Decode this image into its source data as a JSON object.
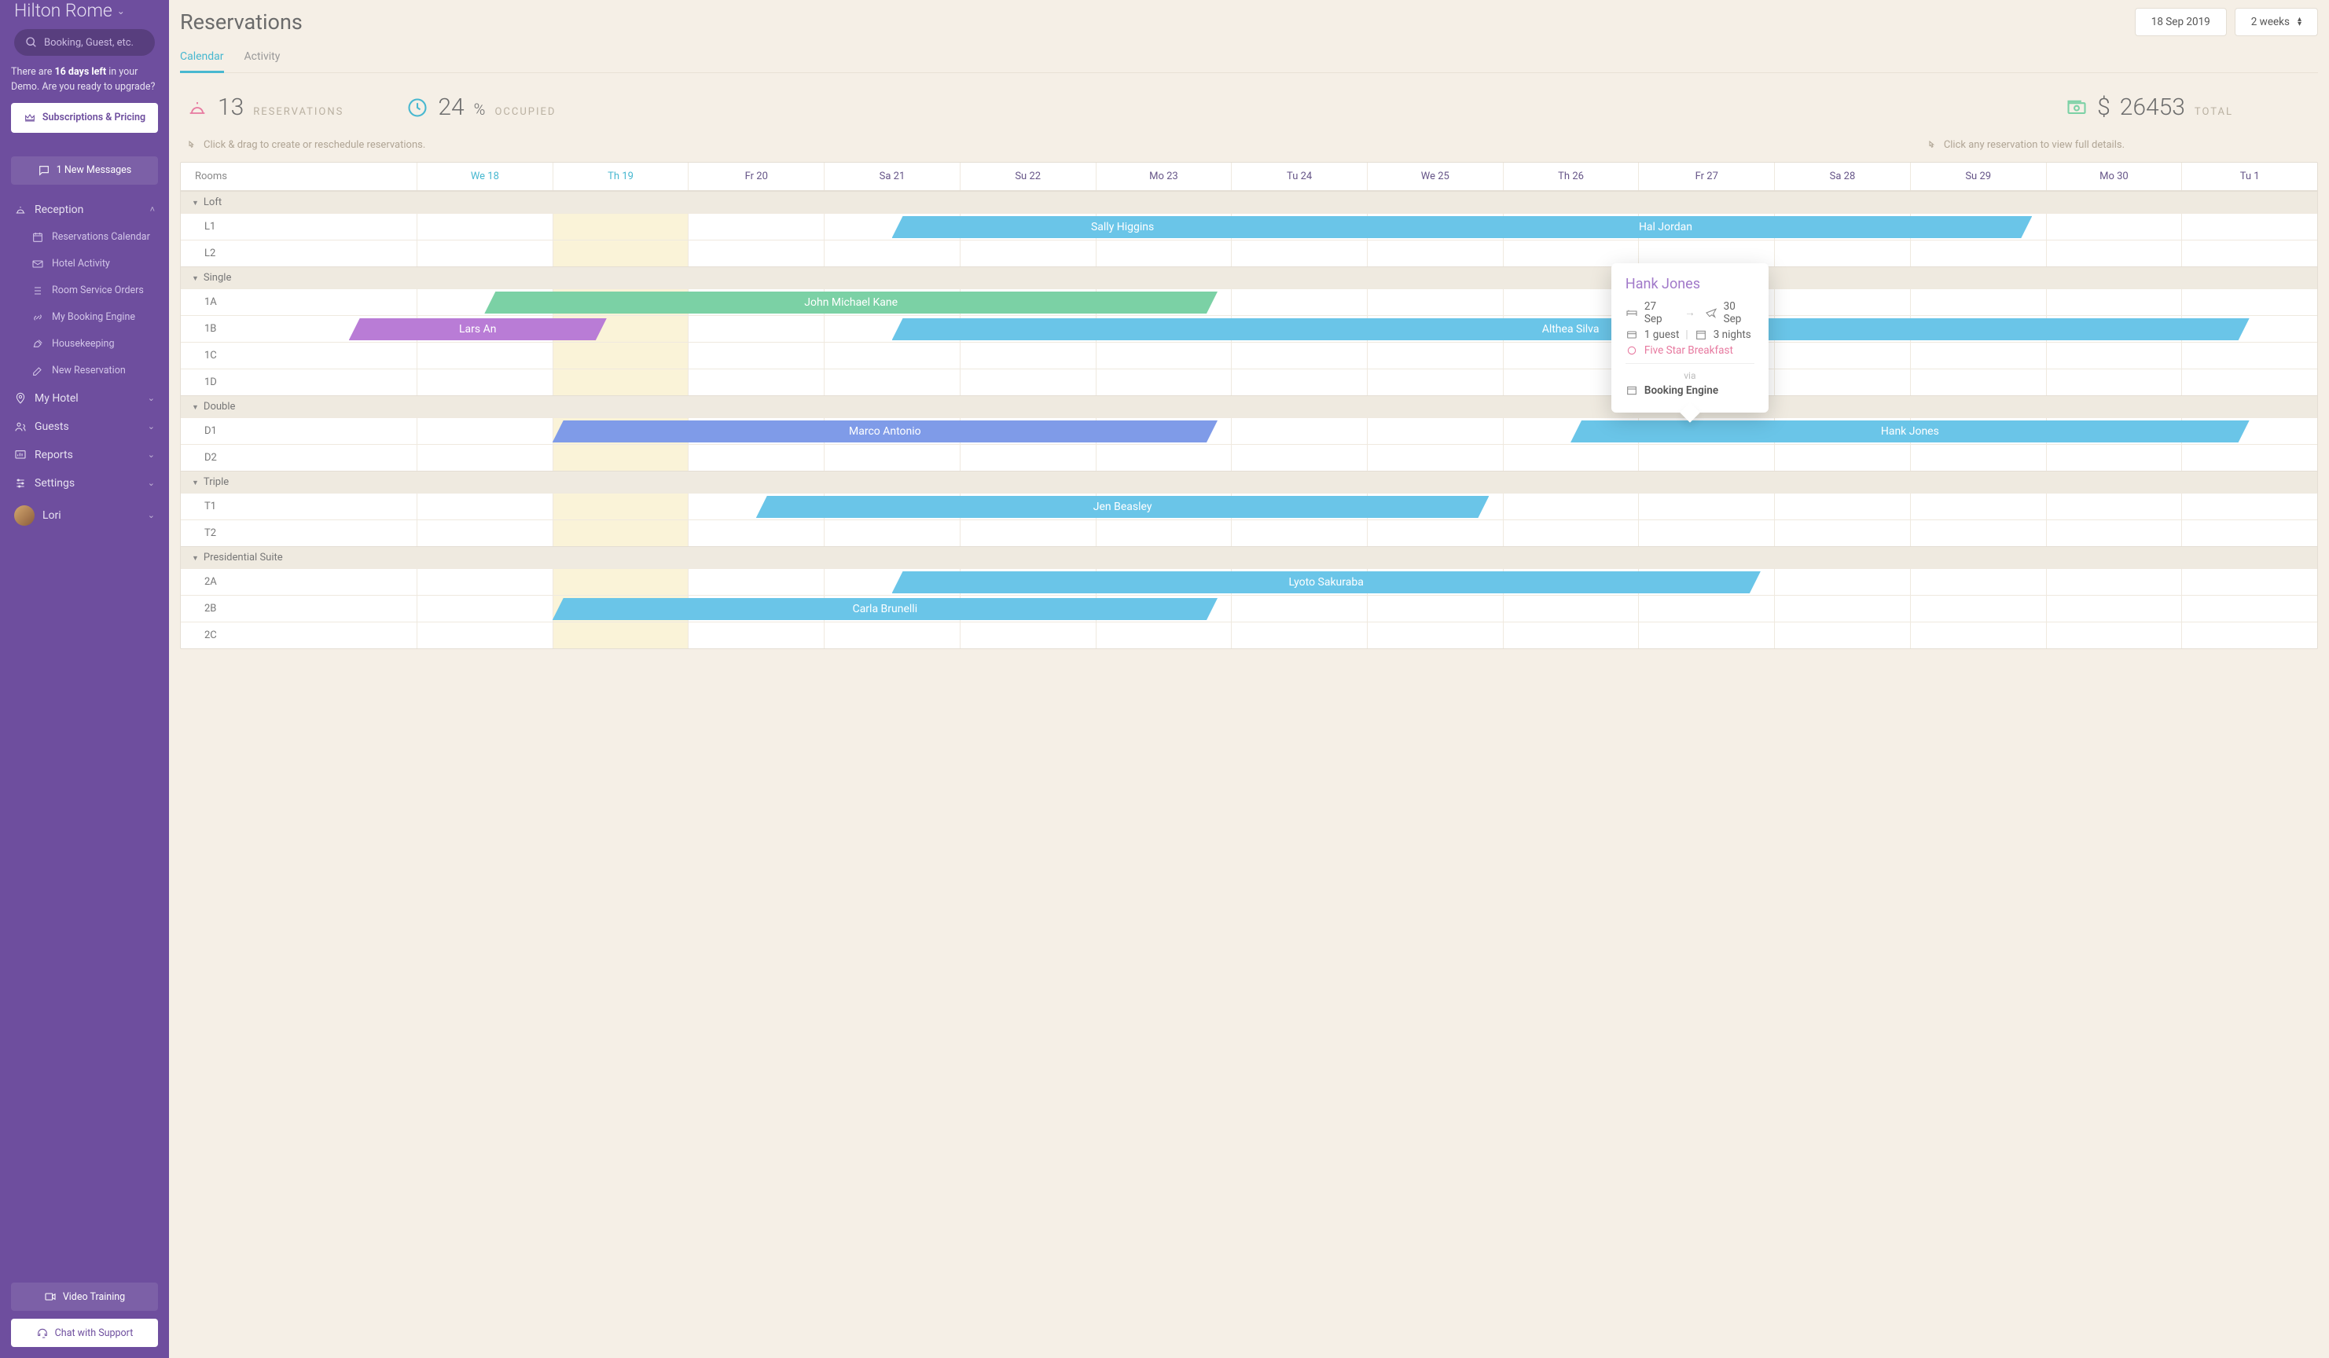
{
  "sidebar": {
    "hotel_name": "Hilton Rome",
    "search_placeholder": "Booking, Guest, etc.",
    "demo_prefix": "There are ",
    "demo_days": "16 days left",
    "demo_suffix": " in your Demo. Are you ready to upgrade?",
    "subscriptions_btn": "Subscriptions & Pricing",
    "messages_btn": "1 New Messages",
    "nav": {
      "reception": "Reception",
      "reception_items": {
        "calendar": "Reservations Calendar",
        "activity": "Hotel Activity",
        "room_service": "Room Service Orders",
        "booking_engine": "My Booking Engine",
        "housekeeping": "Housekeeping",
        "new_reservation": "New Reservation"
      },
      "my_hotel": "My Hotel",
      "guests": "Guests",
      "reports": "Reports",
      "settings": "Settings",
      "user": "Lori"
    },
    "video_training": "Video Training",
    "chat_support": "Chat with Support"
  },
  "header": {
    "title": "Reservations",
    "date": "18 Sep 2019",
    "range": "2 weeks"
  },
  "tabs": {
    "calendar": "Calendar",
    "activity": "Activity"
  },
  "stats": {
    "reservations_num": "13",
    "reservations_lbl": "RESERVATIONS",
    "occupied_num": "24",
    "occupied_pct": "%",
    "occupied_lbl": "OCCUPIED",
    "total_cur": "$",
    "total_num": "26453",
    "total_lbl": "TOTAL"
  },
  "hints": {
    "drag": "Click & drag to create or reschedule reservations.",
    "click": "Click any reservation to view full details."
  },
  "calendar": {
    "rooms_header": "Rooms",
    "days": [
      "We 18",
      "Th 19",
      "Fr 20",
      "Sa 21",
      "Su 22",
      "Mo 23",
      "Tu 24",
      "We 25",
      "Th 26",
      "Fr 27",
      "Sa 28",
      "Su 29",
      "Mo 30",
      "Tu 1"
    ],
    "today_index": 1,
    "groups": [
      {
        "name": "Loft",
        "rooms": [
          {
            "label": "L1",
            "bookings": [
              {
                "name": "Sally Higgins",
                "start": 3.5,
                "span": 3.4,
                "color": "sky"
              },
              {
                "name": "Hal Jordan",
                "start": 6.5,
                "span": 5.4,
                "color": "sky"
              }
            ]
          },
          {
            "label": "L2",
            "bookings": []
          }
        ]
      },
      {
        "name": "Single",
        "rooms": [
          {
            "label": "1A",
            "bookings": [
              {
                "name": "John Michael Kane",
                "start": 0.5,
                "span": 5.4,
                "color": "green"
              }
            ]
          },
          {
            "label": "1B",
            "bookings": [
              {
                "name": "Lars An",
                "start": -0.5,
                "span": 1.9,
                "color": "purple"
              },
              {
                "name": "Althea Silva",
                "start": 3.5,
                "span": 10.0,
                "color": "sky"
              }
            ]
          },
          {
            "label": "1C",
            "bookings": []
          },
          {
            "label": "1D",
            "bookings": []
          }
        ]
      },
      {
        "name": "Double",
        "rooms": [
          {
            "label": "D1",
            "bookings": [
              {
                "name": "Marco Antonio",
                "start": 1.0,
                "span": 4.9,
                "color": "blue"
              },
              {
                "name": "Hank Jones",
                "start": 8.5,
                "span": 5.0,
                "color": "sky",
                "popover": true
              }
            ]
          },
          {
            "label": "D2",
            "bookings": []
          }
        ]
      },
      {
        "name": "Triple",
        "rooms": [
          {
            "label": "T1",
            "bookings": [
              {
                "name": "Jen Beasley",
                "start": 2.5,
                "span": 5.4,
                "color": "sky"
              }
            ]
          },
          {
            "label": "T2",
            "bookings": []
          }
        ]
      },
      {
        "name": "Presidential Suite",
        "rooms": [
          {
            "label": "2A",
            "bookings": [
              {
                "name": "Lyoto Sakuraba",
                "start": 3.5,
                "span": 6.4,
                "color": "sky"
              }
            ]
          },
          {
            "label": "2B",
            "bookings": [
              {
                "name": "Carla Brunelli",
                "start": 1.0,
                "span": 4.9,
                "color": "sky"
              }
            ]
          },
          {
            "label": "2C",
            "bookings": []
          }
        ]
      }
    ]
  },
  "popover": {
    "name": "Hank Jones",
    "checkin": "27 Sep",
    "checkout": "30 Sep",
    "guests": "1 guest",
    "nights": "3 nights",
    "meal": "Five Star Breakfast",
    "via": "via",
    "source": "Booking Engine"
  },
  "colors": {
    "sidebar_bg": "#6e4e9e",
    "accent": "#48b8d0",
    "sky": "#6ac5e8",
    "green": "#7bd1a5",
    "blue": "#7f9be8",
    "purple": "#b97cd6",
    "meal": "#e77aa0"
  }
}
